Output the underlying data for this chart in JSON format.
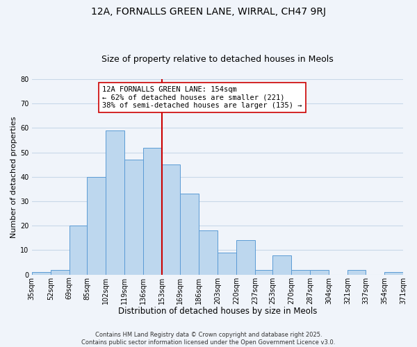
{
  "title": "12A, FORNALLS GREEN LANE, WIRRAL, CH47 9RJ",
  "subtitle": "Size of property relative to detached houses in Meols",
  "xlabel": "Distribution of detached houses by size in Meols",
  "ylabel": "Number of detached properties",
  "bar_color": "#bdd7ee",
  "bar_edge_color": "#5b9bd5",
  "background_color": "#f0f4fa",
  "grid_color": "#c8d8e8",
  "vline_x": 153,
  "vline_color": "#cc0000",
  "annotation_text": "12A FORNALLS GREEN LANE: 154sqm\n← 62% of detached houses are smaller (221)\n38% of semi-detached houses are larger (135) →",
  "annotation_box_color": "#ffffff",
  "annotation_box_edge_color": "#cc0000",
  "bins": [
    35,
    52,
    69,
    85,
    102,
    119,
    136,
    153,
    169,
    186,
    203,
    220,
    237,
    253,
    270,
    287,
    304,
    321,
    337,
    354,
    371
  ],
  "counts": [
    1,
    2,
    20,
    40,
    59,
    47,
    52,
    45,
    33,
    18,
    9,
    14,
    2,
    8,
    2,
    2,
    0,
    2,
    0,
    1
  ],
  "ylim": [
    0,
    80
  ],
  "yticks": [
    0,
    10,
    20,
    30,
    40,
    50,
    60,
    70,
    80
  ],
  "footer_text": "Contains HM Land Registry data © Crown copyright and database right 2025.\nContains public sector information licensed under the Open Government Licence v3.0.",
  "title_fontsize": 10,
  "subtitle_fontsize": 9,
  "xlabel_fontsize": 8.5,
  "ylabel_fontsize": 8,
  "tick_fontsize": 7,
  "footer_fontsize": 6,
  "annot_fontsize": 7.5
}
